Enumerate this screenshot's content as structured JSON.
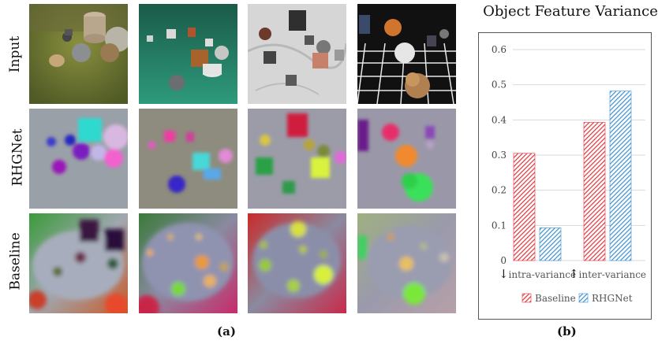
{
  "figure": {
    "row_labels": [
      "Input",
      "RHGNet",
      "Baseline"
    ],
    "panel_a_label": "(a)",
    "panel_b_label": "(b)"
  },
  "colors": {
    "baseline": "#e0333a",
    "rhgnet": "#3a8fd0",
    "grid": "#d9d9d9"
  },
  "chart_data": {
    "type": "bar",
    "title": "Object Feature Variance",
    "categories": [
      "intra-variance",
      "inter-variance"
    ],
    "category_prefixes": [
      "↓",
      "↑"
    ],
    "series": [
      {
        "name": "Baseline",
        "values": [
          0.305,
          0.393
        ]
      },
      {
        "name": "RHGNet",
        "values": [
          0.093,
          0.482
        ]
      }
    ],
    "ylim": [
      0,
      0.6
    ],
    "yticks": [
      "0",
      "0.1",
      "0.2",
      "0.3",
      "0.4",
      "0.5",
      "0.6"
    ],
    "grid": true,
    "legend": "bottom",
    "bar_style": "hatched"
  }
}
